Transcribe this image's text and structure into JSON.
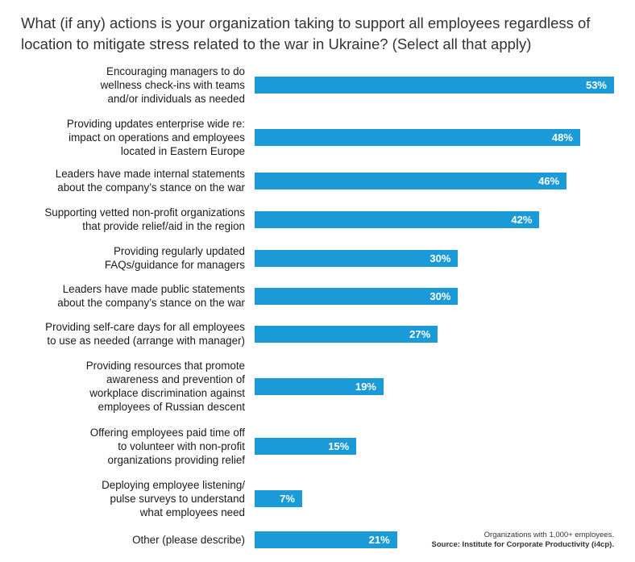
{
  "chart_data": {
    "type": "bar",
    "orientation": "horizontal",
    "title": "What (if any) actions is your organization taking to support all employees regardless of location to mitigate stress related to the war in Ukraine? (Select all that apply)",
    "categories": [
      "Encouraging managers to do\nwellness check-ins with teams\nand/or individuals as needed",
      "Providing updates enterprise wide re:\nimpact on operations and employees\nlocated in Eastern Europe",
      "Leaders have made internal statements\nabout the company’s stance on the war",
      "Supporting vetted non-profit organizations\nthat provide relief/aid in the region",
      "Providing regularly updated\nFAQs/guidance for managers",
      "Leaders have made public statements\nabout the company’s stance on the war",
      "Providing self-care days for all employees\nto use as needed (arrange with manager)",
      "Providing resources that promote\nawareness and prevention of\nworkplace discrimination against\nemployees of Russian descent",
      "Offering employees paid time off\nto volunteer with non-profit\norganizations providing relief",
      "Deploying employee listening/\npulse surveys to understand\nwhat employees need",
      "Other (please describe)"
    ],
    "values": [
      53,
      48,
      46,
      42,
      30,
      30,
      27,
      19,
      15,
      7,
      21
    ],
    "value_labels": [
      "53%",
      "48%",
      "46%",
      "42%",
      "30%",
      "30%",
      "27%",
      "19%",
      "15%",
      "7%",
      "21%"
    ],
    "xlim": [
      0,
      53
    ],
    "grid": false,
    "legend": "none",
    "bar_color": "#1a9ad6"
  },
  "footnote": {
    "note": "Organizations with 1,000+ employees.",
    "source": "Source: Institute for Corporate Productivity (i4cp)."
  }
}
